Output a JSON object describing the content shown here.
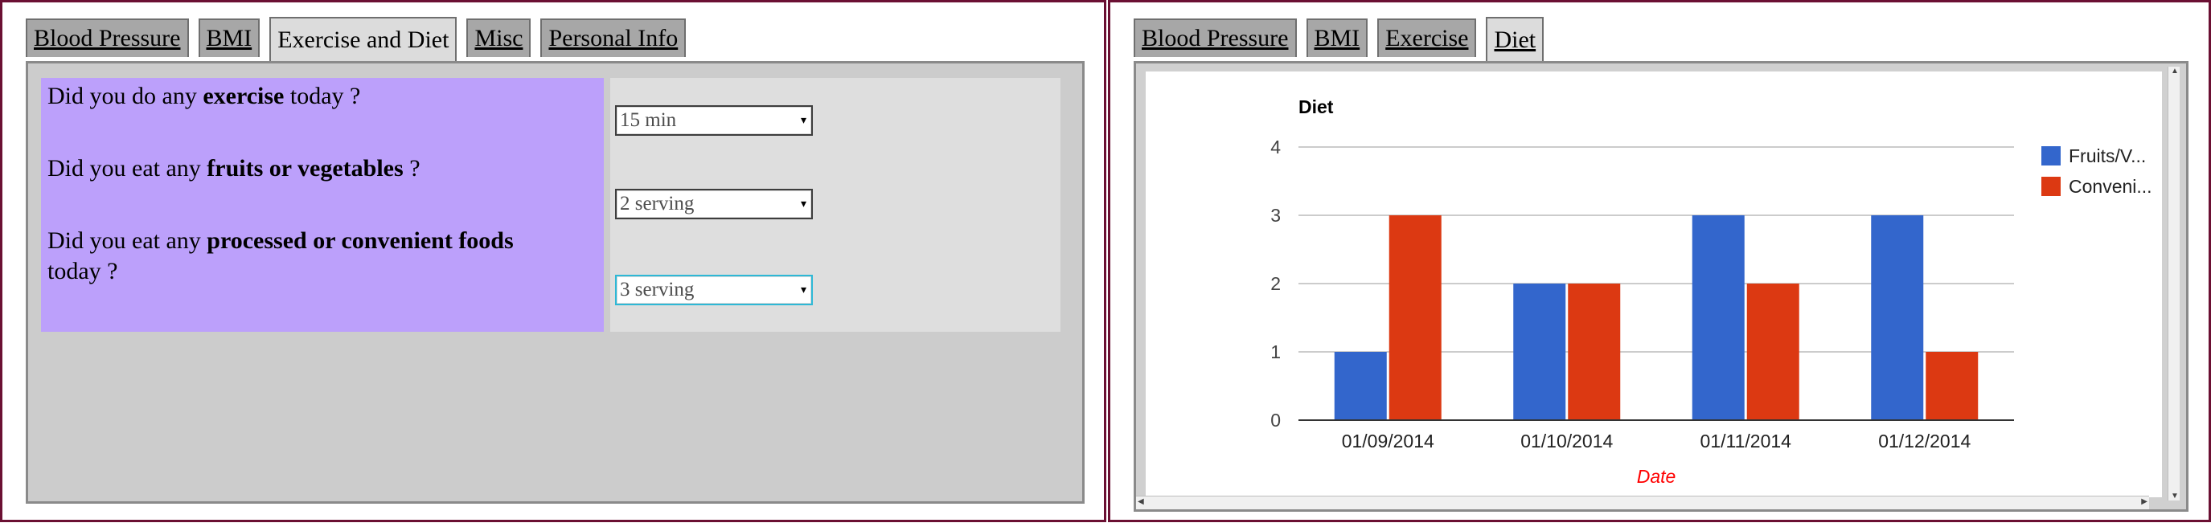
{
  "left": {
    "tabs": [
      "Blood Pressure",
      "BMI",
      "Exercise and Diet",
      "Misc",
      "Personal Info"
    ],
    "active_tab": "Exercise and Diet",
    "questions": [
      {
        "before": "Did you do any ",
        "bold": "exercise",
        "after": " today ?"
      },
      {
        "before": "Did you eat any ",
        "bold": "fruits or vegetables",
        "after": " ?"
      },
      {
        "before": "Did you eat any ",
        "bold": "processed or convenient foods",
        "after": " today ?"
      }
    ],
    "answers": [
      "15 min",
      "2 serving",
      "3 serving"
    ]
  },
  "right": {
    "tabs": [
      "Blood Pressure",
      "BMI",
      "Exercise",
      "Diet"
    ],
    "active_tab": "Diet"
  },
  "chart_data": {
    "type": "bar",
    "title": "Diet",
    "xlabel": "Date",
    "ylabel": "",
    "categories": [
      "01/09/2014",
      "01/10/2014",
      "01/11/2014",
      "01/12/2014"
    ],
    "series": [
      {
        "name": "Fruits/V...",
        "values": [
          1,
          2,
          3,
          3
        ],
        "color": "#3366cc"
      },
      {
        "name": "Conveni...",
        "values": [
          3,
          2,
          2,
          1
        ],
        "color": "#dc3912"
      }
    ],
    "ylim": [
      0,
      4
    ],
    "yticks": [
      0,
      1,
      2,
      3,
      4
    ],
    "grid": true,
    "legend_position": "right"
  }
}
